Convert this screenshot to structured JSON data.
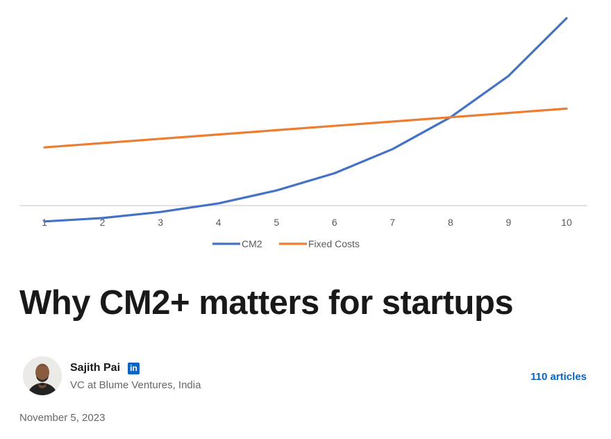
{
  "chart_data": {
    "type": "line",
    "x": [
      1,
      2,
      3,
      4,
      5,
      6,
      7,
      8,
      9,
      10
    ],
    "series": [
      {
        "name": "CM2",
        "color": "#4472c4",
        "values": [
          -1.1,
          -0.7,
          0,
          1,
          2.5,
          4.5,
          7.3,
          11,
          15.8,
          22.5
        ]
      },
      {
        "name": "Fixed Costs",
        "color": "#ed7d31",
        "values": [
          7.5,
          8,
          8.5,
          9,
          9.5,
          10,
          10.5,
          11,
          11.5,
          12
        ]
      }
    ],
    "ylim": [
      -2,
      23
    ],
    "grid": false,
    "legend_position": "bottom-center"
  },
  "article": {
    "title": "Why CM2+ matters for startups",
    "date": "November 5, 2023"
  },
  "author": {
    "name": "Sajith Pai",
    "linkedin_icon": "linkedin-icon",
    "linkedin_glyph": "in",
    "headline": "VC at Blume Ventures, India",
    "articles_link": "110 articles",
    "link_color": "#0a66c2"
  }
}
